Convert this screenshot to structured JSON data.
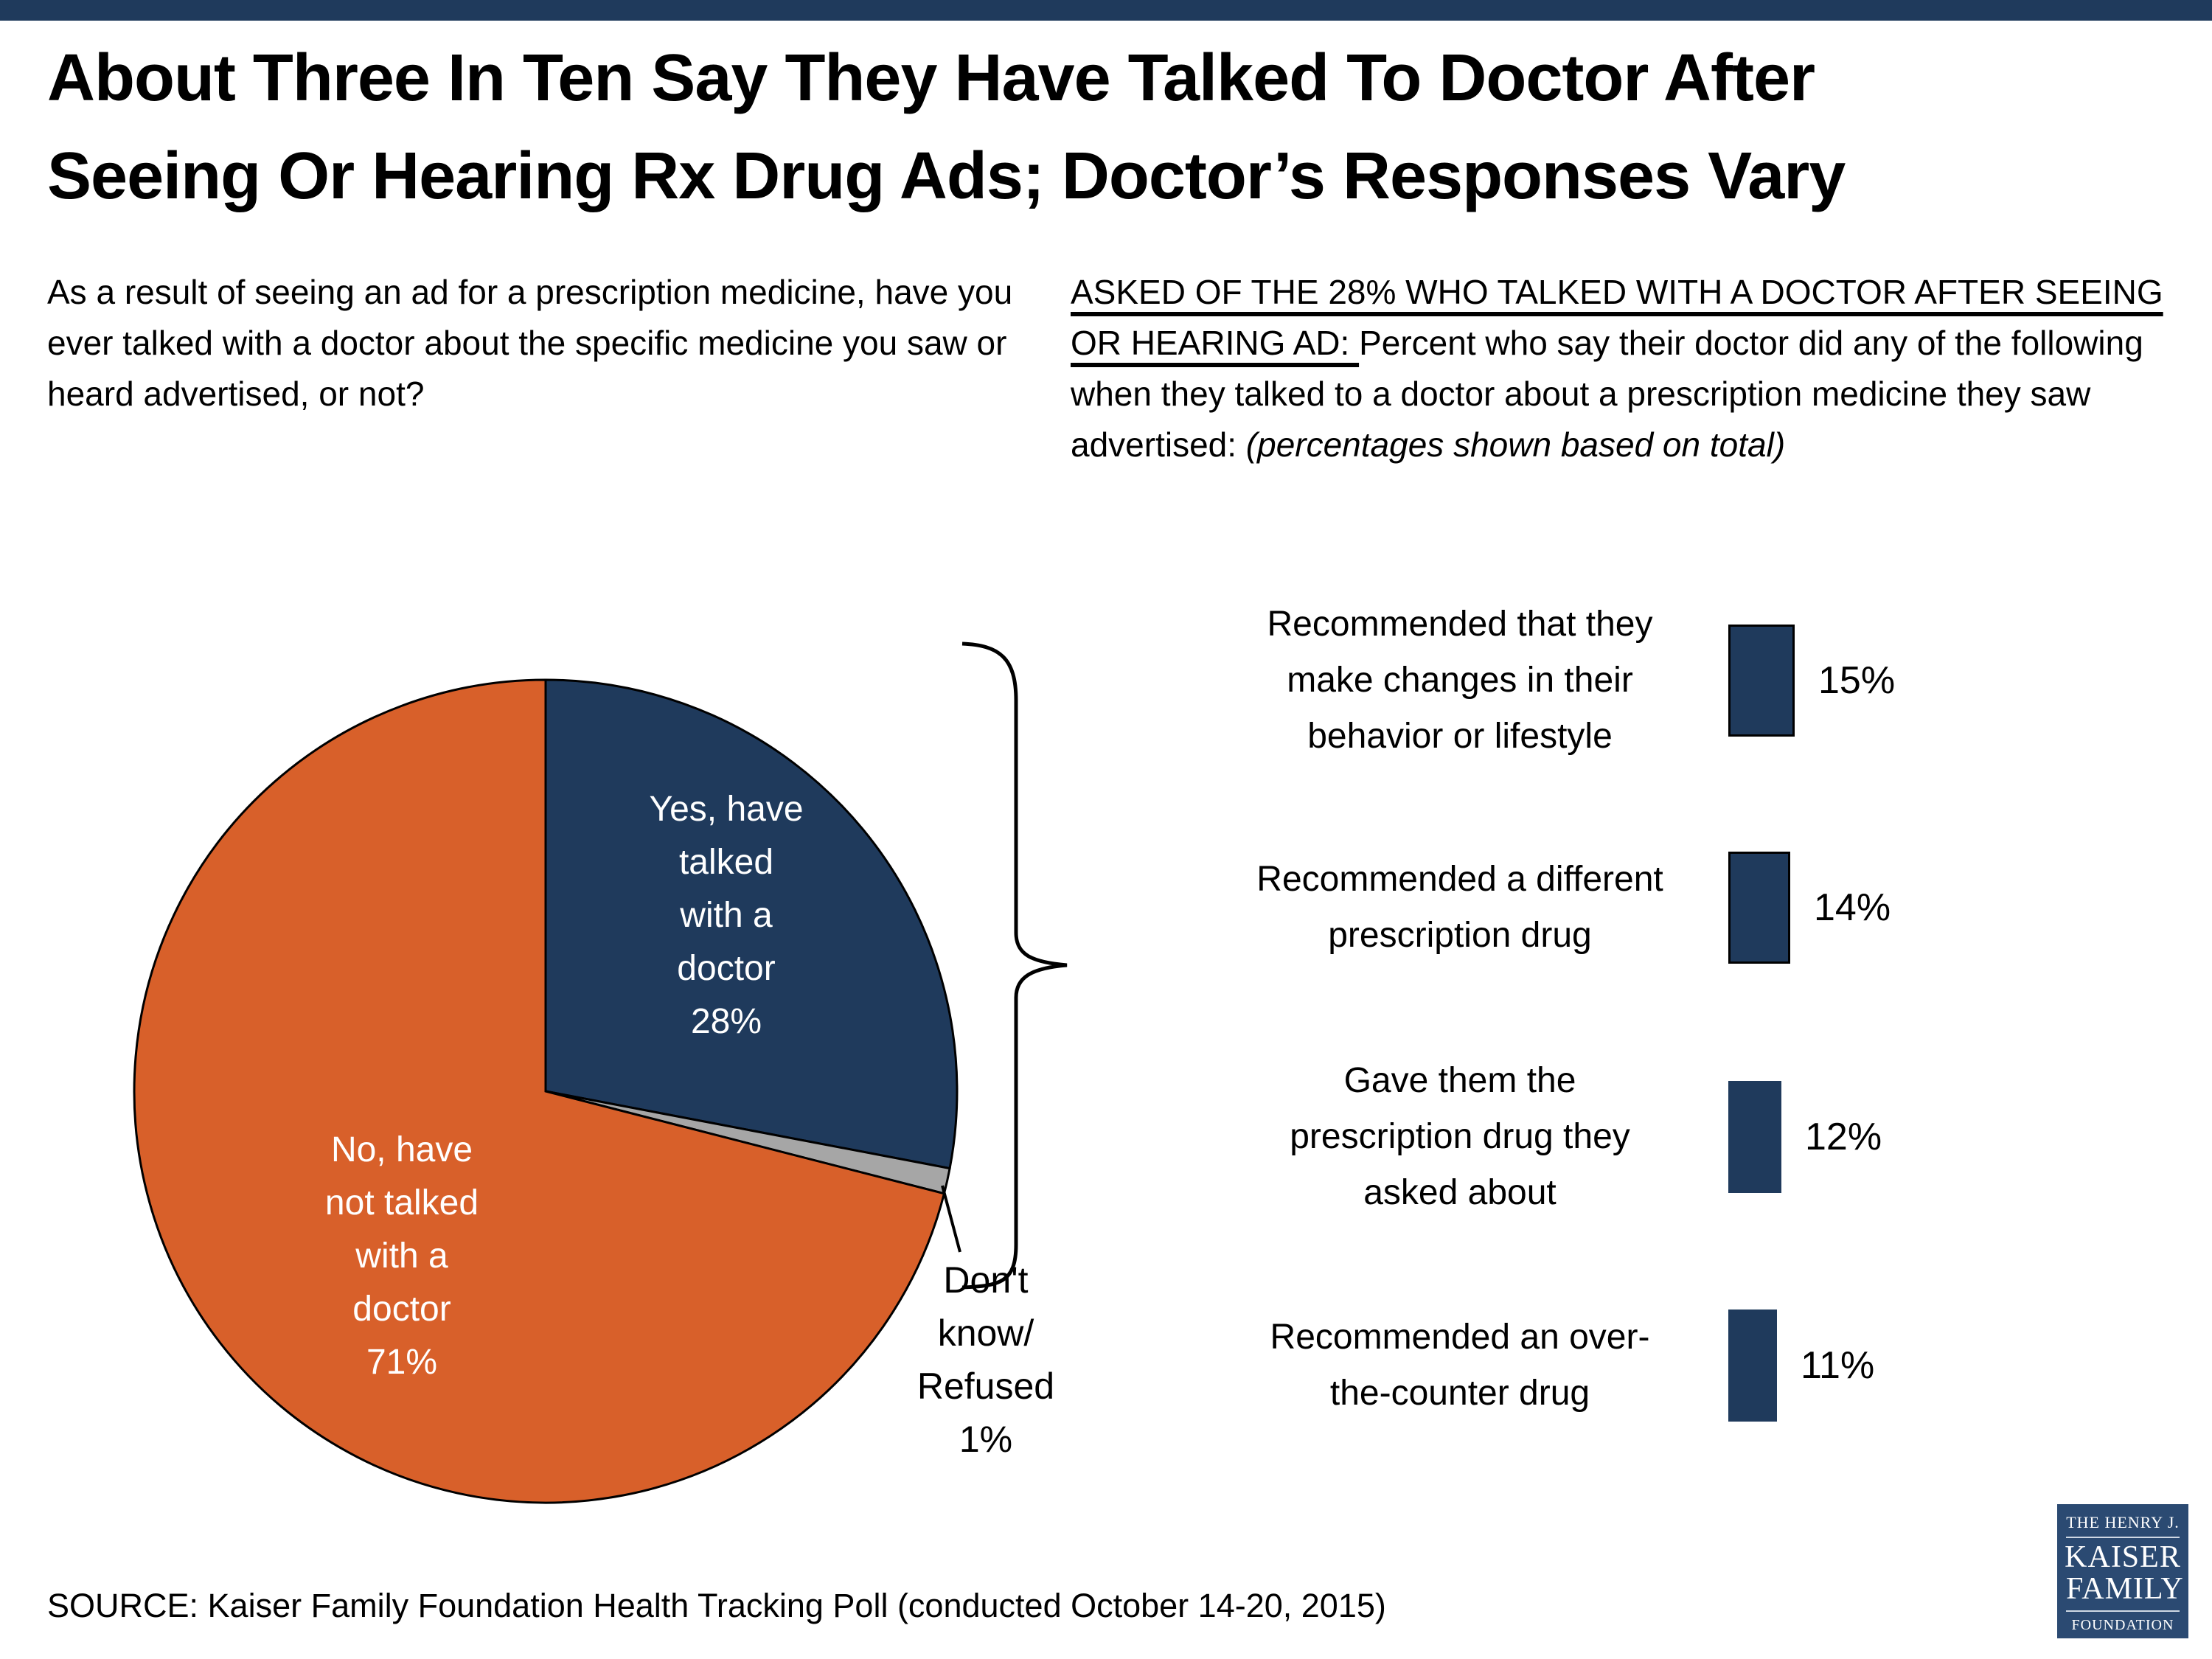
{
  "colors": {
    "navy": "#1F3A5C",
    "orange": "#D8602A",
    "gray": "#A6A6A6",
    "logo_navy": "#2B4A72",
    "top_accent": "#1F3A5C",
    "pie_text_white": "#FFFFFF",
    "text_black": "#000000"
  },
  "header": {
    "title": "About Three In Ten Say They Have Talked To Doctor After\nSeeing Or Hearing Rx Drug Ads; Doctor’s Responses Vary"
  },
  "questions": {
    "left": "As a result of seeing an ad for a prescription medicine, have you ever talked with a doctor about the specific medicine you saw or heard advertised, or not?",
    "right_underlined": "ASKED OF THE 28% WHO TALKED WITH A DOCTOR AFTER SEEING OR HEARING AD: ",
    "right_normal": "Percent who say their doctor did any of the following when they talked to a doctor about a prescription medicine they saw advertised: ",
    "right_italic": "(percentages shown based on total)"
  },
  "chart_data": [
    {
      "type": "pie",
      "start": "top",
      "direction": "clockwise",
      "slices": [
        {
          "label": "Yes, have talked with a doctor",
          "value": 28,
          "color": "#1F3A5C",
          "slice_text": "Yes, have\ntalked\nwith a\ndoctor\n28%",
          "text_color": "#FFFFFF"
        },
        {
          "label": "Don't know/Refused",
          "value": 1,
          "color": "#A6A6A6",
          "slice_text": "Don't\nknow/\nRefused\n1%",
          "text_color": "#000000"
        },
        {
          "label": "No, have not talked with a doctor",
          "value": 71,
          "color": "#D8602A",
          "slice_text": "No, have\nnot talked\nwith a\ndoctor\n71%",
          "text_color": "#FFFFFF"
        }
      ]
    },
    {
      "type": "bar",
      "orientation": "horizontal",
      "bar_color": "#1F3A5C",
      "categories": [
        "Recommended that they\nmake changes in their\nbehavior or lifestyle",
        "Recommended a different\nprescription drug",
        "Gave them the\nprescription drug they\nasked about",
        "Recommended an over-\nthe-counter drug"
      ],
      "values": [
        15,
        14,
        12,
        11
      ],
      "value_labels": [
        "15%",
        "14%",
        "12%",
        "11%"
      ],
      "xlim": [
        0,
        100
      ],
      "grid": false,
      "legend": false
    }
  ],
  "footer": {
    "source": "SOURCE: Kaiser Family Foundation Health Tracking Poll (conducted October 14-20, 2015)"
  },
  "logo": {
    "line1": "THE HENRY J.",
    "line2": "KAISER",
    "line3": "FAMILY",
    "line4": "FOUNDATION"
  }
}
